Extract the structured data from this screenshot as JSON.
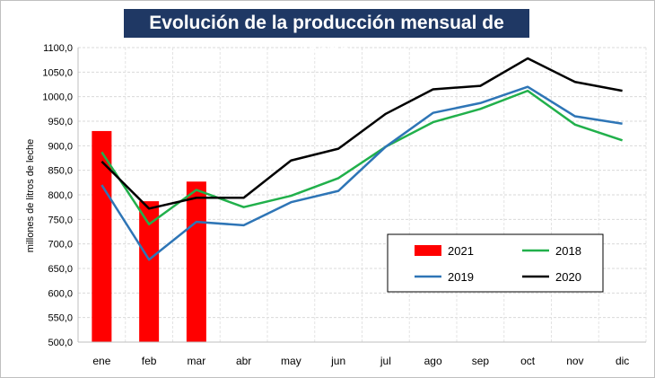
{
  "chart_data": {
    "type": "bar+line",
    "title": "Evolución de la producción mensual de leche",
    "ylabel": "millones de litros de leche",
    "xlabel": "",
    "categories": [
      "ene",
      "feb",
      "mar",
      "abr",
      "may",
      "jun",
      "jul",
      "ago",
      "sep",
      "oct",
      "nov",
      "dic"
    ],
    "ylim": [
      500,
      1100
    ],
    "yticks": [
      "500,0",
      "550,0",
      "600,0",
      "650,0",
      "700,0",
      "750,0",
      "800,0",
      "850,0",
      "900,0",
      "950,0",
      "1000,0",
      "1050,0",
      "1100,0"
    ],
    "grid": true,
    "legend_position": "bottom-right",
    "bars": {
      "name": "2021",
      "color": "#ff0000",
      "values": [
        930,
        787,
        827
      ]
    },
    "series": [
      {
        "name": "2018",
        "color": "#21b04b",
        "values": [
          887,
          740,
          810,
          775,
          798,
          834,
          898,
          948,
          975,
          1012,
          943,
          911
        ]
      },
      {
        "name": "2019",
        "color": "#2e75b6",
        "values": [
          820,
          668,
          745,
          738,
          785,
          808,
          898,
          967,
          987,
          1020,
          960,
          945
        ]
      },
      {
        "name": "2020",
        "color": "#000000",
        "values": [
          868,
          772,
          794,
          794,
          870,
          894,
          965,
          1015,
          1022,
          1078,
          1030,
          1012
        ]
      }
    ],
    "legend": [
      {
        "name": "2021",
        "kind": "bar",
        "color": "#ff0000"
      },
      {
        "name": "2018",
        "kind": "line",
        "color": "#21b04b"
      },
      {
        "name": "2019",
        "kind": "line",
        "color": "#2e75b6"
      },
      {
        "name": "2020",
        "kind": "line",
        "color": "#000000"
      }
    ]
  }
}
